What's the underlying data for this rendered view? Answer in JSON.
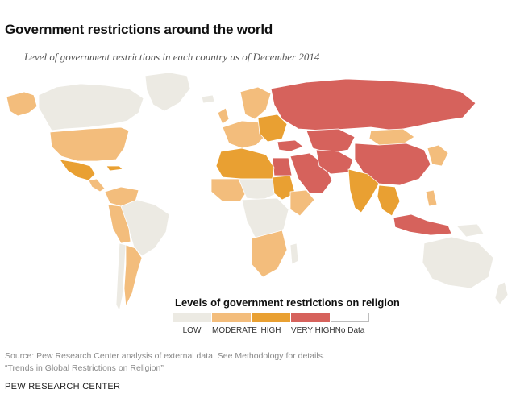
{
  "title": "Government restrictions around the world",
  "subtitle": "Level of government restrictions in each country as of December 2014",
  "legend": {
    "title": "Levels of government restrictions on religion",
    "items": [
      {
        "label": "LOW",
        "color": "#eceae3"
      },
      {
        "label": "MODERATE",
        "color": "#f3bd7c"
      },
      {
        "label": "HIGH",
        "color": "#e9a032"
      },
      {
        "label": "VERY HIGH",
        "color": "#d6625c"
      },
      {
        "label": "No Data",
        "color": "#ffffff"
      }
    ]
  },
  "source_lines": [
    "Source: Pew Research Center analysis of external data. See Methodology for details.",
    "“Trends in Global Restrictions on Religion”"
  ],
  "brand": "PEW RESEARCH CENTER",
  "regions": [
    {
      "name": "alaska",
      "level": "MODERATE"
    },
    {
      "name": "canada",
      "level": "LOW"
    },
    {
      "name": "greenland",
      "level": "LOW"
    },
    {
      "name": "united-states",
      "level": "MODERATE"
    },
    {
      "name": "mexico",
      "level": "HIGH"
    },
    {
      "name": "central-america",
      "level": "MODERATE"
    },
    {
      "name": "cuba",
      "level": "HIGH"
    },
    {
      "name": "colombia-venezuela",
      "level": "MODERATE"
    },
    {
      "name": "brazil",
      "level": "LOW"
    },
    {
      "name": "peru-bolivia",
      "level": "MODERATE"
    },
    {
      "name": "chile",
      "level": "LOW"
    },
    {
      "name": "argentina",
      "level": "MODERATE"
    },
    {
      "name": "iceland",
      "level": "LOW"
    },
    {
      "name": "uk-ireland",
      "level": "MODERATE"
    },
    {
      "name": "scandinavia",
      "level": "MODERATE"
    },
    {
      "name": "western-europe",
      "level": "MODERATE"
    },
    {
      "name": "eastern-europe",
      "level": "HIGH"
    },
    {
      "name": "russia",
      "level": "VERY HIGH"
    },
    {
      "name": "turkey",
      "level": "VERY HIGH"
    },
    {
      "name": "kazakhstan",
      "level": "VERY HIGH"
    },
    {
      "name": "mongolia",
      "level": "MODERATE"
    },
    {
      "name": "china",
      "level": "VERY HIGH"
    },
    {
      "name": "middle-east",
      "level": "VERY HIGH"
    },
    {
      "name": "egypt",
      "level": "VERY HIGH"
    },
    {
      "name": "iran-afghanistan",
      "level": "VERY HIGH"
    },
    {
      "name": "india",
      "level": "HIGH"
    },
    {
      "name": "southeast-asia",
      "level": "HIGH"
    },
    {
      "name": "japan-korea",
      "level": "MODERATE"
    },
    {
      "name": "indonesia",
      "level": "VERY HIGH"
    },
    {
      "name": "philippines",
      "level": "MODERATE"
    },
    {
      "name": "papua",
      "level": "LOW"
    },
    {
      "name": "australia",
      "level": "LOW"
    },
    {
      "name": "new-zealand",
      "level": "LOW"
    },
    {
      "name": "north-africa",
      "level": "HIGH"
    },
    {
      "name": "west-africa",
      "level": "MODERATE"
    },
    {
      "name": "sahel",
      "level": "LOW"
    },
    {
      "name": "sudan",
      "level": "HIGH"
    },
    {
      "name": "horn-of-africa",
      "level": "MODERATE"
    },
    {
      "name": "central-africa",
      "level": "LOW"
    },
    {
      "name": "southern-africa",
      "level": "MODERATE"
    },
    {
      "name": "madagascar",
      "level": "LOW"
    }
  ]
}
